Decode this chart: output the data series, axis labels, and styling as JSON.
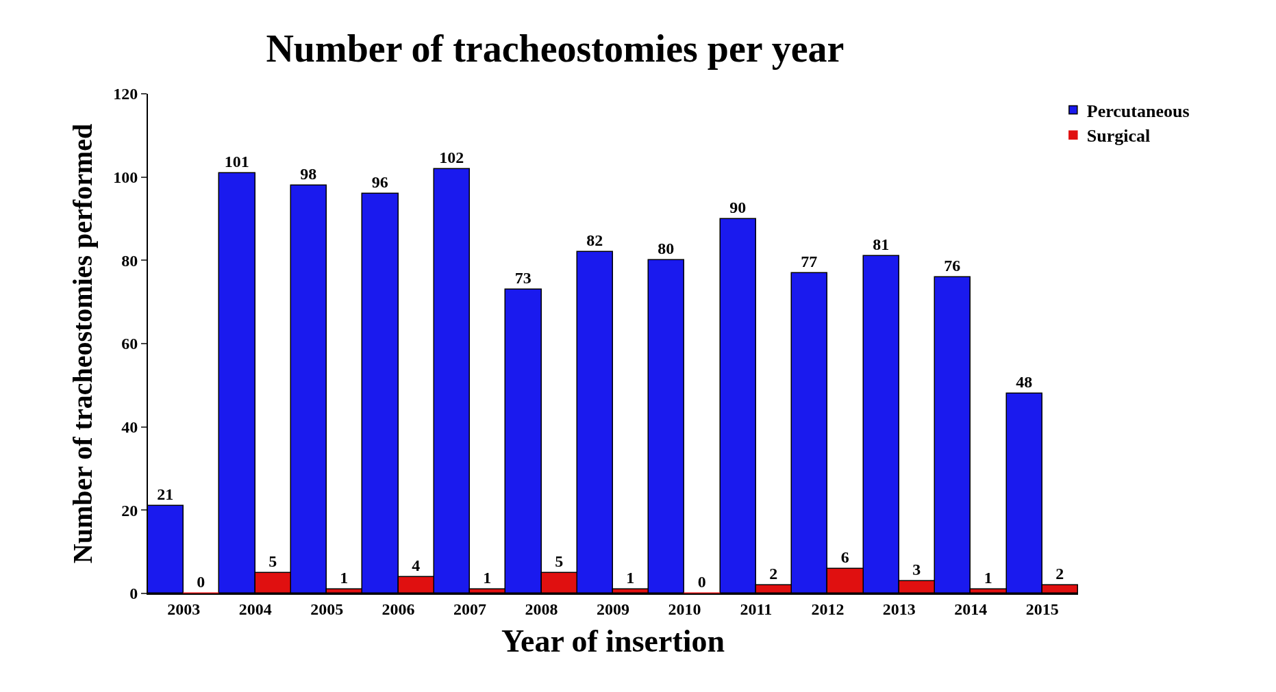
{
  "chart_data": {
    "type": "bar",
    "title": "Number of tracheostomies per year",
    "xlabel": "Year of insertion",
    "ylabel": "Number of tracheostomies performed",
    "categories": [
      "2003",
      "2004",
      "2005",
      "2006",
      "2007",
      "2008",
      "2009",
      "2010",
      "2011",
      "2012",
      "2013",
      "2014",
      "2015"
    ],
    "series": [
      {
        "name": "Percutaneous",
        "color": "#1a1aee",
        "values": [
          21,
          101,
          98,
          96,
          102,
          73,
          82,
          80,
          90,
          77,
          81,
          76,
          48
        ]
      },
      {
        "name": "Surgical",
        "color": "#e01010",
        "values": [
          0,
          5,
          1,
          4,
          1,
          5,
          1,
          0,
          2,
          6,
          3,
          1,
          2
        ]
      }
    ],
    "ylim": [
      0,
      120
    ],
    "yticks": [
      0,
      20,
      40,
      60,
      80,
      100,
      120
    ],
    "grid": false,
    "legend": "top right",
    "data_labels": true
  }
}
